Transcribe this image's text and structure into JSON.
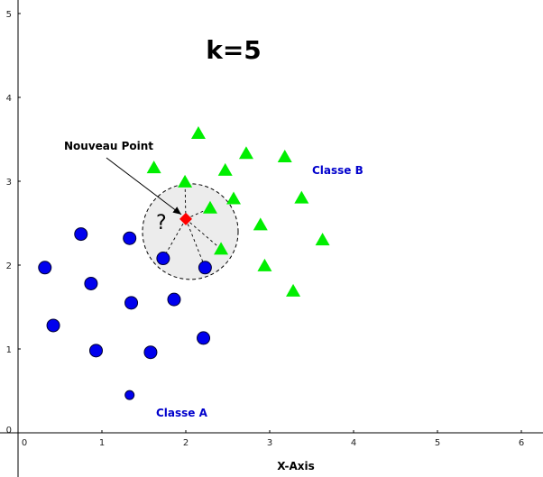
{
  "title": "k=5",
  "labels": {
    "new_point": "Nouveau Point",
    "class_b": "Classe B",
    "class_a": "Classe A",
    "question": "?",
    "x_axis": "X-Axis"
  },
  "colors": {
    "class_a": "#0000ee",
    "class_b": "#00ee00",
    "new_point": "#ff0000",
    "label_blue": "#0000cc",
    "circle_fill": "#ececec"
  },
  "chart_data": {
    "type": "scatter",
    "xlim": [
      -0.1,
      6.3
    ],
    "ylim": [
      -0.05,
      5.15
    ],
    "x_ticks": [
      "0",
      "1",
      "2",
      "3",
      "4",
      "5",
      "6"
    ],
    "y_ticks": [
      "0",
      "1",
      "2",
      "3",
      "4",
      "5"
    ],
    "k": 5,
    "new_point": {
      "x": 2.0,
      "y": 2.55
    },
    "neighborhood_radius": 0.57,
    "class_a_points": [
      {
        "x": 0.32,
        "y": 1.97
      },
      {
        "x": 0.75,
        "y": 2.37
      },
      {
        "x": 0.87,
        "y": 1.78
      },
      {
        "x": 0.42,
        "y": 1.28
      },
      {
        "x": 0.93,
        "y": 0.98
      },
      {
        "x": 1.33,
        "y": 2.32
      },
      {
        "x": 1.35,
        "y": 1.55
      },
      {
        "x": 1.73,
        "y": 2.08
      },
      {
        "x": 1.86,
        "y": 1.59
      },
      {
        "x": 2.23,
        "y": 1.97
      },
      {
        "x": 2.21,
        "y": 1.13
      },
      {
        "x": 1.58,
        "y": 0.96
      },
      {
        "x": 1.33,
        "y": 0.45,
        "small": true
      }
    ],
    "class_b_points": [
      {
        "x": 2.15,
        "y": 3.57
      },
      {
        "x": 1.62,
        "y": 3.16
      },
      {
        "x": 1.99,
        "y": 2.99
      },
      {
        "x": 2.47,
        "y": 3.13
      },
      {
        "x": 2.72,
        "y": 3.33
      },
      {
        "x": 3.18,
        "y": 3.29
      },
      {
        "x": 2.29,
        "y": 2.68
      },
      {
        "x": 2.57,
        "y": 2.79
      },
      {
        "x": 2.89,
        "y": 2.48
      },
      {
        "x": 3.38,
        "y": 2.8
      },
      {
        "x": 3.63,
        "y": 2.3
      },
      {
        "x": 2.42,
        "y": 2.19
      },
      {
        "x": 2.94,
        "y": 1.99
      },
      {
        "x": 3.28,
        "y": 1.69
      }
    ],
    "neighbors": [
      {
        "x": 2.29,
        "y": 2.68
      },
      {
        "x": 1.99,
        "y": 2.99
      },
      {
        "x": 2.42,
        "y": 2.19
      },
      {
        "x": 1.73,
        "y": 2.08
      },
      {
        "x": 2.23,
        "y": 1.97
      }
    ]
  }
}
